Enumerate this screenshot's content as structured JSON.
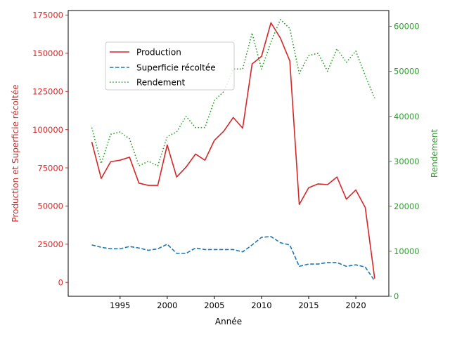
{
  "chart_data": {
    "type": "line",
    "title": "",
    "xlabel": "Année",
    "ylabel_left": "Production et Superficie récoltée",
    "ylabel_right": "Rendement",
    "xlim": [
      1989.5,
      2023.5
    ],
    "ylim_left": [
      -9100,
      178000
    ],
    "ylim_right": [
      0,
      63500
    ],
    "x_ticks": [
      1995,
      2000,
      2005,
      2010,
      2015,
      2020
    ],
    "y_ticks_left": [
      0,
      25000,
      50000,
      75000,
      100000,
      125000,
      150000,
      175000
    ],
    "y_ticks_right": [
      0,
      10000,
      20000,
      30000,
      40000,
      50000,
      60000
    ],
    "grid": false,
    "legend_position": "upper-center-left",
    "colors": {
      "left_axis": "#d62728",
      "right_axis": "#2ca02c",
      "production": "#d62728",
      "superficie": "#1f77b4",
      "rendement": "#2ca02c"
    },
    "x": [
      1992,
      1993,
      1994,
      1995,
      1996,
      1997,
      1998,
      1999,
      2000,
      2001,
      2002,
      2003,
      2004,
      2005,
      2006,
      2007,
      2008,
      2009,
      2010,
      2011,
      2012,
      2013,
      2014,
      2015,
      2016,
      2017,
      2018,
      2019,
      2020,
      2021,
      2022
    ],
    "series": [
      {
        "name": "Production",
        "axis": "left",
        "style": "solid",
        "values": [
          92000,
          68000,
          79000,
          80000,
          82000,
          65000,
          63500,
          63500,
          90000,
          69000,
          75500,
          84000,
          80000,
          93000,
          99000,
          108000,
          101000,
          143000,
          148000,
          170000,
          160000,
          145000,
          51000,
          62000,
          64500,
          64000,
          69000,
          54500,
          60500,
          49000,
          2500
        ]
      },
      {
        "name": "Superficie récoltée",
        "axis": "left",
        "style": "dashed",
        "values": [
          24500,
          23000,
          22000,
          22000,
          23500,
          22500,
          21000,
          22000,
          25000,
          19000,
          19000,
          22500,
          21500,
          21500,
          21500,
          21500,
          20000,
          24500,
          29500,
          30000,
          26000,
          24500,
          10500,
          12000,
          12000,
          13000,
          13000,
          10500,
          11500,
          10000,
          1000
        ]
      },
      {
        "name": "Rendement",
        "axis": "right",
        "style": "dotted",
        "values": [
          37500,
          29500,
          36000,
          36500,
          35000,
          29000,
          30000,
          29000,
          35500,
          36500,
          40000,
          37500,
          37500,
          43500,
          45500,
          50500,
          50500,
          58500,
          50500,
          56500,
          61500,
          59500,
          49500,
          53500,
          54000,
          50000,
          55000,
          52000,
          54500,
          49000,
          44000
        ]
      }
    ]
  }
}
